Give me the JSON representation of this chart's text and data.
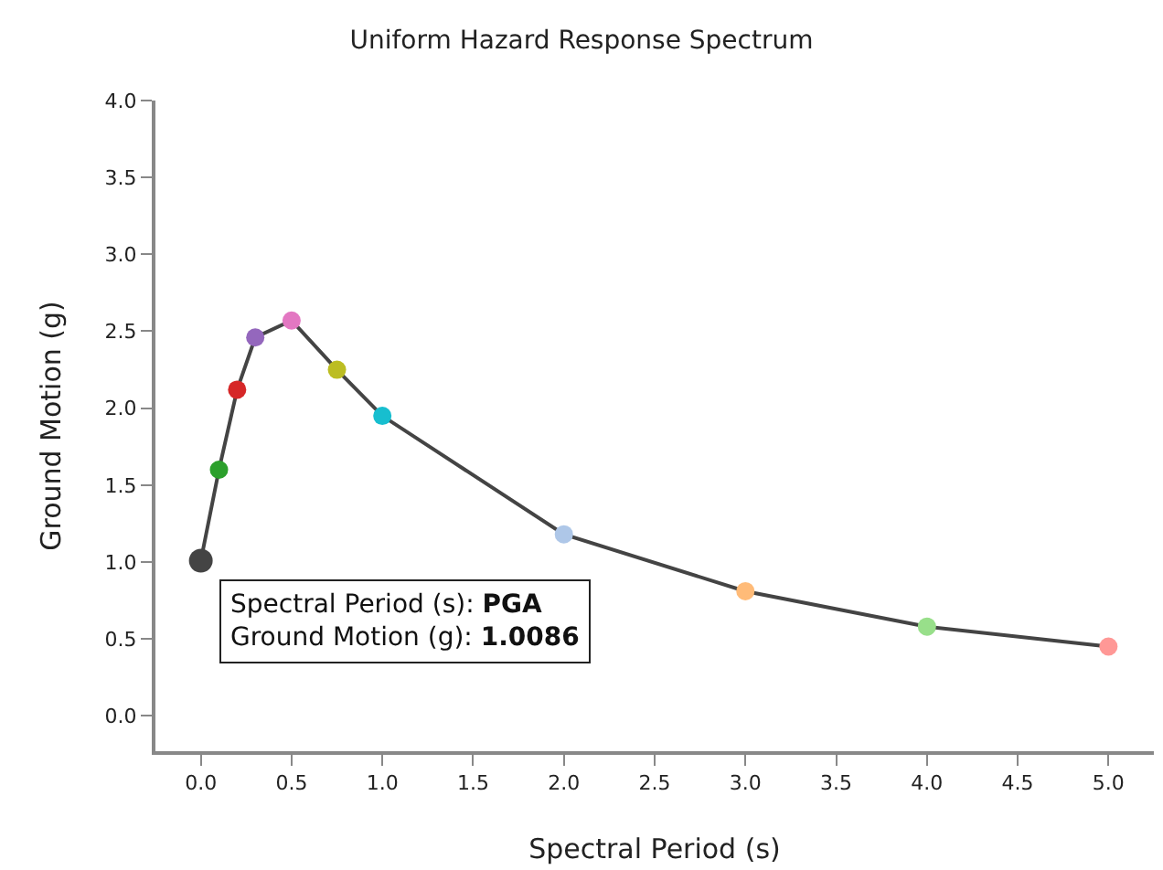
{
  "chart_data": {
    "type": "line",
    "title": "Uniform Hazard Response Spectrum",
    "xlabel": "Spectral Period (s)",
    "ylabel": "Ground Motion (g)",
    "x": [
      0,
      0.1,
      0.2,
      0.3,
      0.5,
      0.75,
      1.0,
      2.0,
      3.0,
      4.0,
      5.0
    ],
    "series": [
      {
        "color": "#444444",
        "values": [
          1.0086,
          1.6,
          2.12,
          2.46,
          2.57,
          2.25,
          1.95,
          1.18,
          0.81,
          0.58,
          0.45
        ],
        "colors": [
          "#444444",
          "#2ca02c",
          "#d62728",
          "#9467bd",
          "#e377c2",
          "#bcbd22",
          "#17becf",
          "#aec7e8",
          "#ffbb78",
          "#98df8a",
          "#ff9896"
        ]
      }
    ],
    "marker": "circle",
    "line_style": "solid",
    "legend": false,
    "xlim": [
      -0.25,
      5.25
    ],
    "xticks": [
      {
        "value": 0,
        "label": "0.0"
      },
      0.5,
      {
        "value": 1,
        "label": "1.0"
      },
      1.5,
      {
        "value": 2,
        "label": "2.0"
      },
      2.5,
      {
        "value": 3,
        "label": "3.0"
      },
      3.5,
      {
        "value": 4,
        "label": "4.0"
      },
      4.5,
      {
        "value": 5,
        "label": "5.0"
      }
    ],
    "ylim": [
      -0.23,
      4.0
    ],
    "yticks": [
      {
        "value": 0,
        "label": "0.0"
      },
      0.5,
      {
        "value": 1,
        "label": "1.0"
      },
      1.5,
      {
        "value": 2,
        "label": "2.0"
      },
      2.5,
      {
        "value": 3,
        "label": "3.0"
      },
      3.5,
      {
        "value": 4,
        "label": "4.0"
      }
    ],
    "annotations": [
      {
        "text": "Spectral Period (s): PGA\nGround Motion (g): 1.0086",
        "x": 0,
        "y": 1.0086
      }
    ]
  }
}
